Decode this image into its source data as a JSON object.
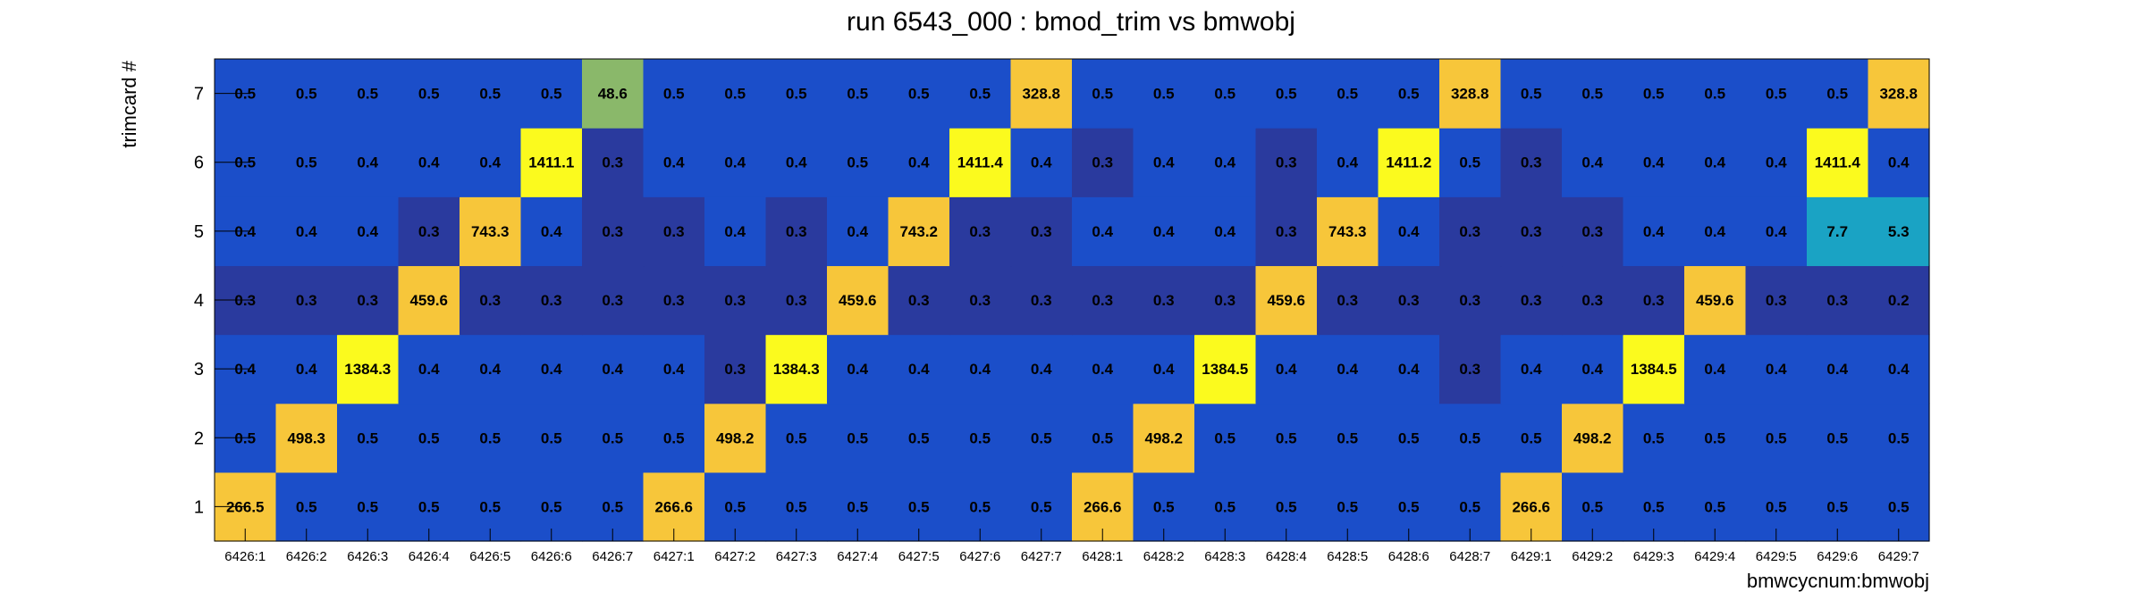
{
  "chart_data": {
    "type": "heatmap",
    "title": "run 6543_000 : bmod_trim vs bmwobj",
    "xlabel": "bmwcycnum:bmwobj",
    "ylabel": "trimcard #",
    "x_categories": [
      "6426:1",
      "6426:2",
      "6426:3",
      "6426:4",
      "6426:5",
      "6426:6",
      "6426:7",
      "6427:1",
      "6427:2",
      "6427:3",
      "6427:4",
      "6427:5",
      "6427:6",
      "6427:7",
      "6428:1",
      "6428:2",
      "6428:3",
      "6428:4",
      "6428:5",
      "6428:6",
      "6428:7",
      "6429:1",
      "6429:2",
      "6429:3",
      "6429:4",
      "6429:5",
      "6429:6",
      "6429:7"
    ],
    "y_categories": [
      "1",
      "2",
      "3",
      "4",
      "5",
      "6",
      "7"
    ],
    "values": [
      [
        266.5,
        0.5,
        0.5,
        0.5,
        0.5,
        0.5,
        0.5,
        266.6,
        0.5,
        0.5,
        0.5,
        0.5,
        0.5,
        0.5,
        266.6,
        0.5,
        0.5,
        0.5,
        0.5,
        0.5,
        0.5,
        266.6,
        0.5,
        0.5,
        0.5,
        0.5,
        0.5,
        0.5
      ],
      [
        0.5,
        498.3,
        0.5,
        0.5,
        0.5,
        0.5,
        0.5,
        0.5,
        498.2,
        0.5,
        0.5,
        0.5,
        0.5,
        0.5,
        0.5,
        498.2,
        0.5,
        0.5,
        0.5,
        0.5,
        0.5,
        0.5,
        498.2,
        0.5,
        0.5,
        0.5,
        0.5,
        0.5
      ],
      [
        0.4,
        0.4,
        1384.3,
        0.4,
        0.4,
        0.4,
        0.4,
        0.4,
        0.3,
        1384.3,
        0.4,
        0.4,
        0.4,
        0.4,
        0.4,
        0.4,
        1384.5,
        0.4,
        0.4,
        0.4,
        0.3,
        0.4,
        0.4,
        1384.5,
        0.4,
        0.4,
        0.4,
        0.4
      ],
      [
        0.3,
        0.3,
        0.3,
        459.6,
        0.3,
        0.3,
        0.3,
        0.3,
        0.3,
        0.3,
        459.6,
        0.3,
        0.3,
        0.3,
        0.3,
        0.3,
        0.3,
        459.6,
        0.3,
        0.3,
        0.3,
        0.3,
        0.3,
        0.3,
        459.6,
        0.3,
        0.3,
        0.2
      ],
      [
        0.4,
        0.4,
        0.4,
        0.3,
        743.3,
        0.4,
        0.3,
        0.3,
        0.4,
        0.3,
        0.4,
        743.2,
        0.3,
        0.3,
        0.4,
        0.4,
        0.4,
        0.3,
        743.3,
        0.4,
        0.3,
        0.3,
        0.3,
        0.4,
        0.4,
        0.4,
        7.7,
        5.3
      ],
      [
        0.5,
        0.5,
        0.4,
        0.4,
        0.4,
        1411.1,
        0.3,
        0.4,
        0.4,
        0.4,
        0.5,
        0.4,
        1411.4,
        0.4,
        0.3,
        0.4,
        0.4,
        0.3,
        0.4,
        1411.2,
        0.5,
        0.3,
        0.4,
        0.4,
        0.4,
        0.4,
        1411.4,
        0.4
      ],
      [
        0.5,
        0.5,
        0.5,
        0.5,
        0.5,
        0.5,
        48.6,
        0.5,
        0.5,
        0.5,
        0.5,
        0.5,
        0.5,
        328.8,
        0.5,
        0.5,
        0.5,
        0.5,
        0.5,
        0.5,
        328.8,
        0.5,
        0.5,
        0.5,
        0.5,
        0.5,
        0.5,
        328.8
      ]
    ],
    "color_scale": [
      "#2a3a9e",
      "#1b4ec9",
      "#1aa3c4",
      "#8ab86a",
      "#f7c63a",
      "#fbfa1e"
    ],
    "legend": "none",
    "grid": false
  }
}
